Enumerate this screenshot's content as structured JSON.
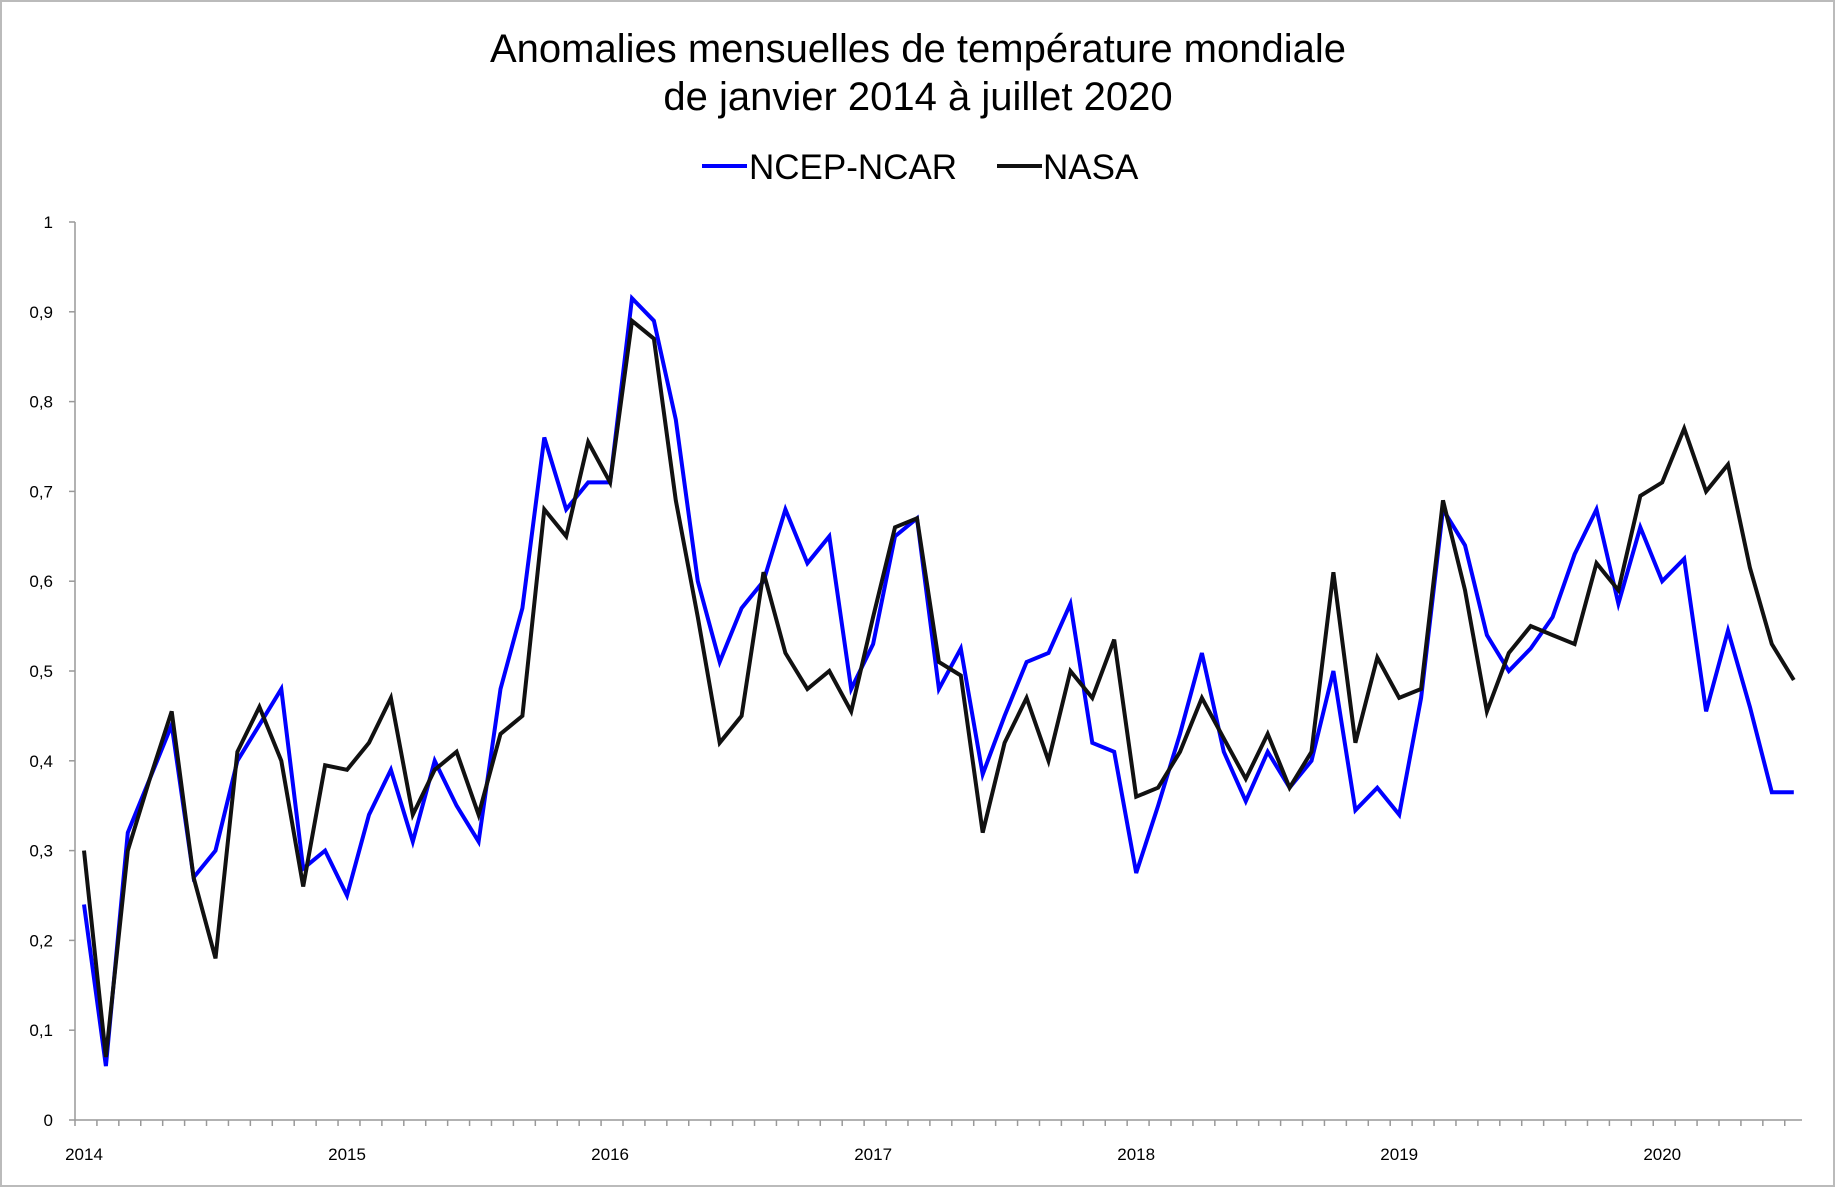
{
  "chart_data": {
    "type": "line",
    "title": [
      "Anomalies mensuelles de température mondiale",
      "de janvier 2014 à juillet 2020"
    ],
    "xlabel": "",
    "ylabel": "",
    "x_tick_labels": [
      "2014",
      "2015",
      "2016",
      "2017",
      "2018",
      "2019",
      "2020"
    ],
    "y_tick_labels": [
      "0",
      "0,1",
      "0,2",
      "0,3",
      "0,4",
      "0,5",
      "0,6",
      "0,7",
      "0,8",
      "0,9",
      "1"
    ],
    "ylim": [
      0,
      1
    ],
    "x_range": [
      "2014-01",
      "2020-07"
    ],
    "x_step": "month",
    "grid": false,
    "legend_position": "top",
    "series": [
      {
        "name": "NCEP-NCAR",
        "color": "#0000ff",
        "values": [
          0.24,
          0.06,
          0.32,
          0.38,
          0.44,
          0.27,
          0.3,
          0.4,
          0.44,
          0.48,
          0.28,
          0.3,
          0.25,
          0.34,
          0.39,
          0.31,
          0.4,
          0.35,
          0.31,
          0.48,
          0.57,
          0.76,
          0.68,
          0.71,
          0.71,
          0.915,
          0.89,
          0.78,
          0.6,
          0.51,
          0.57,
          0.6,
          0.68,
          0.62,
          0.65,
          0.48,
          0.53,
          0.65,
          0.67,
          0.48,
          0.525,
          0.385,
          0.45,
          0.51,
          0.52,
          0.575,
          0.42,
          0.41,
          0.275,
          0.35,
          0.43,
          0.52,
          0.41,
          0.355,
          0.41,
          0.37,
          0.4,
          0.5,
          0.345,
          0.37,
          0.34,
          0.47,
          0.68,
          0.64,
          0.54,
          0.5,
          0.525,
          0.56,
          0.63,
          0.68,
          0.575,
          0.66,
          0.6,
          0.625,
          0.455,
          0.545,
          0.46,
          0.365,
          0.365
        ]
      },
      {
        "name": "NASA",
        "color": "#111111",
        "values": [
          0.3,
          0.07,
          0.3,
          0.38,
          0.455,
          0.27,
          0.18,
          0.41,
          0.46,
          0.4,
          0.26,
          0.395,
          0.39,
          0.42,
          0.47,
          0.34,
          0.39,
          0.41,
          0.34,
          0.43,
          0.45,
          0.68,
          0.65,
          0.755,
          0.71,
          0.89,
          0.87,
          0.69,
          0.56,
          0.42,
          0.45,
          0.61,
          0.52,
          0.48,
          0.5,
          0.455,
          0.56,
          0.66,
          0.67,
          0.51,
          0.495,
          0.32,
          0.42,
          0.47,
          0.4,
          0.5,
          0.47,
          0.535,
          0.36,
          0.37,
          0.41,
          0.47,
          0.425,
          0.38,
          0.43,
          0.37,
          0.41,
          0.61,
          0.42,
          0.515,
          0.47,
          0.48,
          0.69,
          0.59,
          0.455,
          0.52,
          0.55,
          0.54,
          0.53,
          0.62,
          0.59,
          0.695,
          0.71,
          0.77,
          0.7,
          0.73,
          0.615,
          0.53,
          0.49
        ]
      }
    ]
  }
}
